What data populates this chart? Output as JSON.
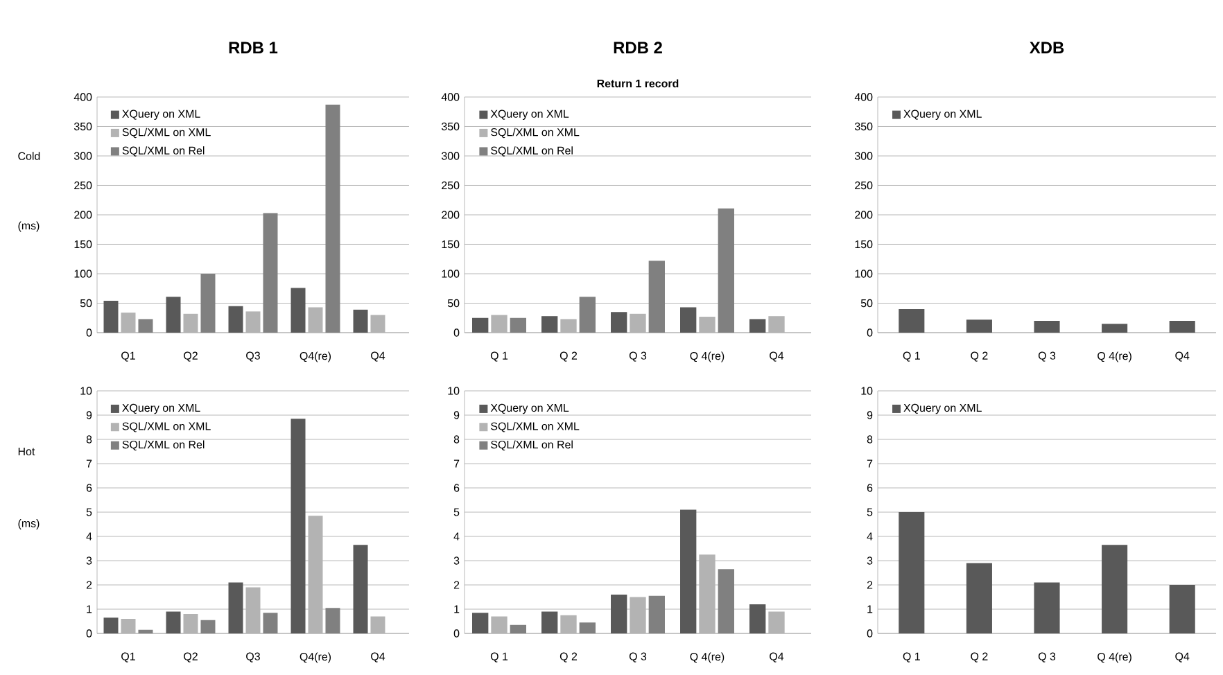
{
  "chart_data": [
    {
      "type": "bar",
      "title": "RDB 1",
      "ylabel": "Cold",
      "annotations": [
        "(ms)"
      ],
      "categories": [
        "Q1",
        "Q2",
        "Q3",
        "Q4(re)",
        "Q4"
      ],
      "series": [
        {
          "name": "XQuery on XML",
          "color": "#595959",
          "values": [
            54,
            61,
            45,
            76,
            39
          ]
        },
        {
          "name": "SQL/XML on XML",
          "color": "#b3b3b3",
          "values": [
            34,
            32,
            36,
            43,
            30
          ]
        },
        {
          "name": "SQL/XML on Rel",
          "color": "#808080",
          "values": [
            23,
            100,
            203,
            387,
            null
          ]
        }
      ],
      "ylim": [
        0,
        400
      ],
      "yticks": [
        0,
        50,
        100,
        150,
        200,
        250,
        300,
        350,
        400
      ],
      "grid": "y",
      "legend": "top left"
    },
    {
      "type": "bar",
      "title": "RDB 2",
      "subtitle": "Return 1 record",
      "categories": [
        "Q 1",
        "Q 2",
        "Q 3",
        "Q 4(re)",
        "Q4"
      ],
      "series": [
        {
          "name": "XQuery on XML",
          "color": "#595959",
          "values": [
            25,
            28,
            35,
            43,
            23
          ]
        },
        {
          "name": "SQL/XML on XML",
          "color": "#b3b3b3",
          "values": [
            30,
            23,
            32,
            27,
            28
          ]
        },
        {
          "name": "SQL/XML on Rel",
          "color": "#808080",
          "values": [
            25,
            61,
            122,
            211,
            null
          ]
        }
      ],
      "ylim": [
        0,
        400
      ],
      "yticks": [
        0,
        50,
        100,
        150,
        200,
        250,
        300,
        350,
        400
      ],
      "grid": "y",
      "legend": "top left"
    },
    {
      "type": "bar",
      "title": "XDB",
      "categories": [
        "Q 1",
        "Q 2",
        "Q 3",
        "Q 4(re)",
        "Q4"
      ],
      "series": [
        {
          "name": "XQuery on XML",
          "color": "#595959",
          "values": [
            40,
            22,
            20,
            15,
            20
          ]
        }
      ],
      "ylim": [
        0,
        400
      ],
      "yticks": [
        0,
        50,
        100,
        150,
        200,
        250,
        300,
        350,
        400
      ],
      "grid": "y",
      "legend": "top left"
    },
    {
      "type": "bar",
      "ylabel": "Hot",
      "annotations": [
        "(ms)"
      ],
      "categories": [
        "Q1",
        "Q2",
        "Q3",
        "Q4(re)",
        "Q4"
      ],
      "series": [
        {
          "name": "XQuery on XML",
          "color": "#595959",
          "values": [
            0.65,
            0.9,
            2.1,
            8.85,
            3.65
          ]
        },
        {
          "name": "SQL/XML on XML",
          "color": "#b3b3b3",
          "values": [
            0.6,
            0.8,
            1.9,
            4.85,
            0.7
          ]
        },
        {
          "name": "SQL/XML on Rel",
          "color": "#808080",
          "values": [
            0.15,
            0.55,
            0.85,
            1.05,
            null
          ]
        }
      ],
      "ylim": [
        0,
        10
      ],
      "yticks": [
        0,
        1,
        2,
        3,
        4,
        5,
        6,
        7,
        8,
        9,
        10
      ],
      "grid": "y",
      "legend": "top left"
    },
    {
      "type": "bar",
      "categories": [
        "Q 1",
        "Q 2",
        "Q 3",
        "Q 4(re)",
        "Q4"
      ],
      "series": [
        {
          "name": "XQuery on XML",
          "color": "#595959",
          "values": [
            0.85,
            0.9,
            1.6,
            5.1,
            1.2
          ]
        },
        {
          "name": "SQL/XML on XML",
          "color": "#b3b3b3",
          "values": [
            0.7,
            0.75,
            1.5,
            3.25,
            0.9
          ]
        },
        {
          "name": "SQL/XML on Rel",
          "color": "#808080",
          "values": [
            0.35,
            0.45,
            1.55,
            2.65,
            null
          ]
        }
      ],
      "ylim": [
        0,
        10
      ],
      "yticks": [
        0,
        1,
        2,
        3,
        4,
        5,
        6,
        7,
        8,
        9,
        10
      ],
      "grid": "y",
      "legend": "top left"
    },
    {
      "type": "bar",
      "categories": [
        "Q 1",
        "Q 2",
        "Q 3",
        "Q 4(re)",
        "Q4"
      ],
      "series": [
        {
          "name": "XQuery on XML",
          "color": "#595959",
          "values": [
            5.0,
            2.9,
            2.1,
            3.65,
            2.0
          ]
        }
      ],
      "ylim": [
        0,
        10
      ],
      "yticks": [
        0,
        1,
        2,
        3,
        4,
        5,
        6,
        7,
        8,
        9,
        10
      ],
      "grid": "y",
      "legend": "top left"
    }
  ]
}
